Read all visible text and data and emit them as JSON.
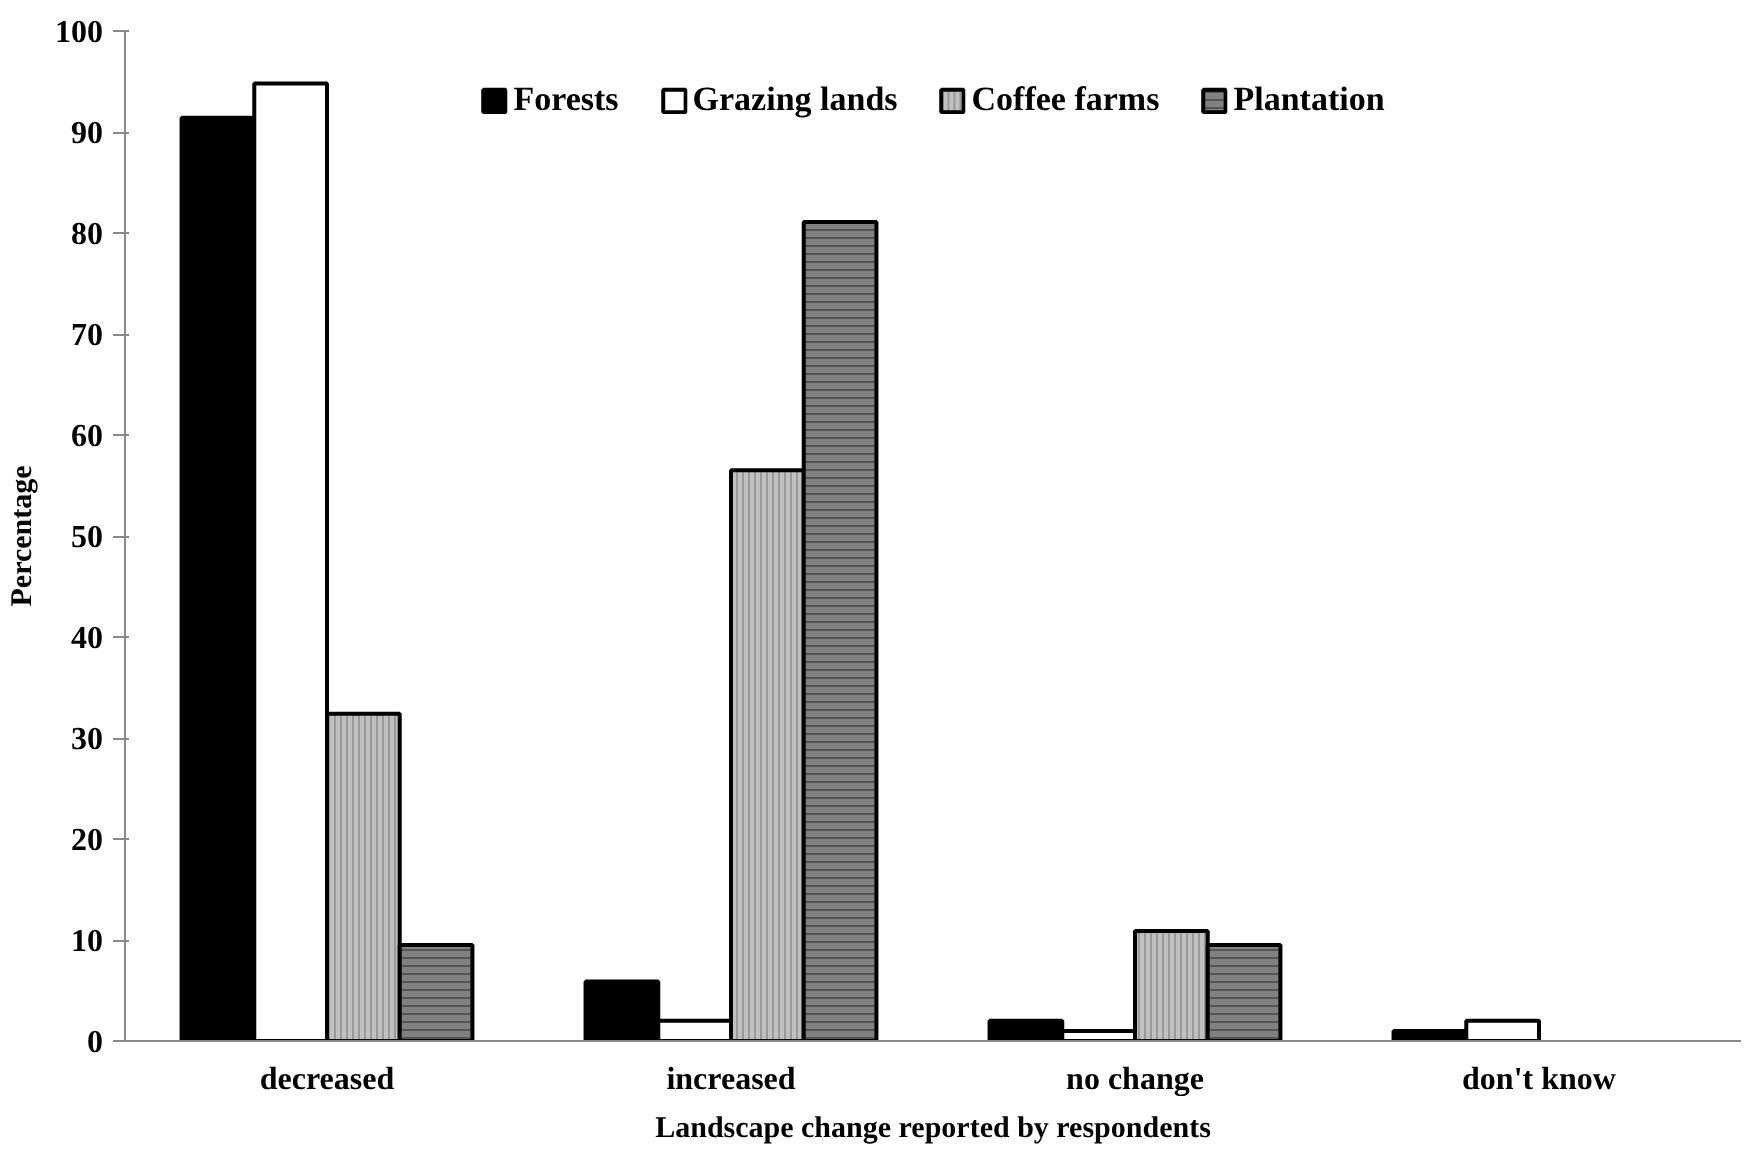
{
  "chart_data": {
    "type": "bar",
    "xlabel": "Landscape change reported by respondents",
    "ylabel": "Percentage",
    "categories": [
      "decreased",
      "increased",
      "no change",
      "don't know"
    ],
    "series": [
      {
        "name": "Forests",
        "color": "#000000",
        "values": [
          91.4,
          5.9,
          2,
          1
        ]
      },
      {
        "name": "Grazing lands",
        "color": "#ffffff",
        "values": [
          94.8,
          2,
          1,
          2
        ]
      },
      {
        "name": "Coffee farms",
        "color": "#c0c0c0",
        "values": [
          32.4,
          56.5,
          10.9,
          null
        ]
      },
      {
        "name": "Plantation",
        "color": "#808080",
        "values": [
          9.5,
          81.1,
          9.5,
          null
        ]
      }
    ],
    "ylim": [
      0,
      100
    ],
    "yticks": [
      0,
      10,
      20,
      30,
      40,
      50,
      60,
      70,
      80,
      90,
      100
    ],
    "grid": false,
    "legend": "top"
  }
}
